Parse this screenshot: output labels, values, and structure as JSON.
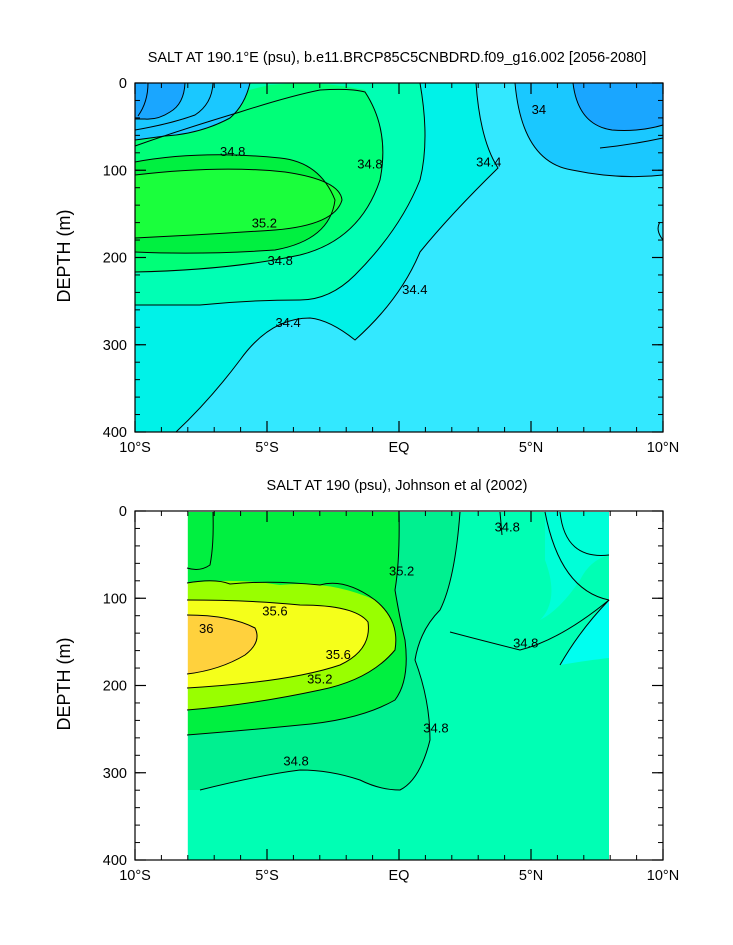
{
  "chart_data": [
    {
      "type": "contour",
      "title": "SALT AT 190.1°E (psu), b.e11.BRCP85C5CNBDRD.f09_g16.002 [2056-2080]",
      "xlabel": "",
      "ylabel": "DEPTH (m)",
      "xlim": [
        -10,
        10
      ],
      "ylim": [
        0,
        400
      ],
      "y_inverted": true,
      "x_ticks": [
        -10,
        -5,
        0,
        5,
        10
      ],
      "x_tick_labels": [
        "10°S",
        "5°S",
        "EQ",
        "5°N",
        "10°N"
      ],
      "y_ticks": [
        0,
        100,
        200,
        300,
        400
      ],
      "y_tick_labels": [
        "0",
        "100",
        "200",
        "300",
        "400"
      ],
      "contour_labels": [
        {
          "text": "34",
          "x": 5.3,
          "y": 30
        },
        {
          "text": "34.8",
          "x": -6.3,
          "y": 78
        },
        {
          "text": "34.8",
          "x": -1.1,
          "y": 92
        },
        {
          "text": "34.4",
          "x": 3.4,
          "y": 90
        },
        {
          "text": "35.2",
          "x": -5.1,
          "y": 160
        },
        {
          "text": "34.8",
          "x": -4.5,
          "y": 203
        },
        {
          "text": "34.4",
          "x": 0.6,
          "y": 236
        },
        {
          "text": "34.4",
          "x": -4.2,
          "y": 274
        }
      ],
      "levels": [
        {
          "value": 33.8,
          "color": "#1aa6ff"
        },
        {
          "value": 34.0,
          "color": "#1ac8ff"
        },
        {
          "value": 34.2,
          "color": "#33e8ff"
        },
        {
          "value": 34.4,
          "color": "#00f2e8"
        },
        {
          "value": 34.6,
          "color": "#00ffb4"
        },
        {
          "value": 34.8,
          "color": "#00ff78"
        },
        {
          "value": 35.0,
          "color": "#00f040"
        },
        {
          "value": 35.2,
          "color": "#1aff3c"
        },
        {
          "value": 35.4,
          "color": "#99ff00"
        },
        {
          "value": 35.6,
          "color": "#f5ff1a"
        },
        {
          "value": 35.8,
          "color": "#ffd13d"
        }
      ]
    },
    {
      "type": "contour",
      "title": "SALT AT 190 (psu), Johnson et al (2002)",
      "xlabel": "",
      "ylabel": "DEPTH (m)",
      "xlim": [
        -10,
        10
      ],
      "ylim": [
        0,
        400
      ],
      "y_inverted": true,
      "data_xlim": [
        -8,
        8
      ],
      "x_ticks": [
        -10,
        -5,
        0,
        5,
        10
      ],
      "x_tick_labels": [
        "10°S",
        "5°S",
        "EQ",
        "5°N",
        "10°N"
      ],
      "y_ticks": [
        0,
        100,
        200,
        300,
        400
      ],
      "y_tick_labels": [
        "0",
        "100",
        "200",
        "300",
        "400"
      ],
      "contour_labels": [
        {
          "text": "34.8",
          "x": 4.1,
          "y": 18
        },
        {
          "text": "35.2",
          "x": 0.1,
          "y": 68
        },
        {
          "text": "35.6",
          "x": -4.7,
          "y": 114
        },
        {
          "text": "36",
          "x": -7.3,
          "y": 134
        },
        {
          "text": "35.6",
          "x": -2.3,
          "y": 164
        },
        {
          "text": "35.2",
          "x": -3.0,
          "y": 192
        },
        {
          "text": "34.8",
          "x": 4.8,
          "y": 151
        },
        {
          "text": "34.8",
          "x": 1.4,
          "y": 248
        },
        {
          "text": "34.8",
          "x": -3.9,
          "y": 286
        }
      ]
    }
  ]
}
